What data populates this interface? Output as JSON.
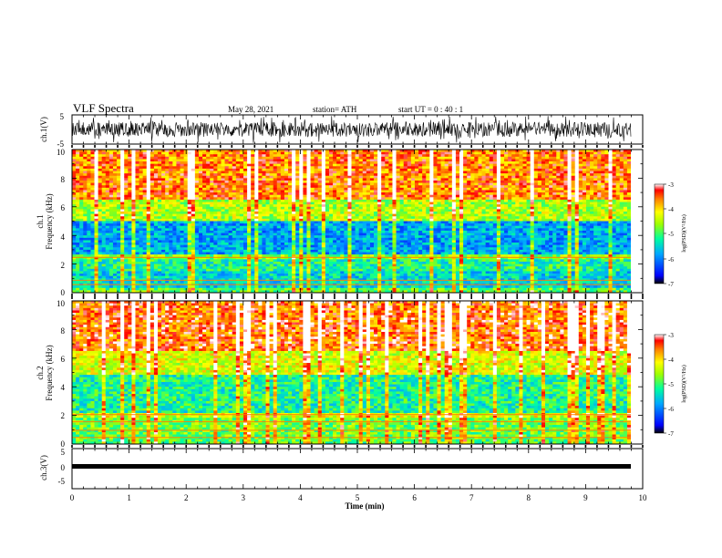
{
  "header": {
    "title": "VLF Spectra",
    "date": "May 28, 2021",
    "station": "station= ATH",
    "start": "start  UT  =   0 : 40 : 1"
  },
  "chart_data": [
    {
      "type": "line",
      "ylabel": "ch.1(V)",
      "ylim": [
        -5,
        5
      ],
      "yticks": [
        "5",
        "-5"
      ],
      "xlim": [
        0,
        10
      ],
      "description_of_signal": "noisy voltage waveform spanning the full range",
      "color": "#000000"
    },
    {
      "type": "heatmap",
      "ylabel_line1": "ch.1",
      "ylabel_line2": "Frequency (kHz)",
      "ylim": [
        0,
        10
      ],
      "yticks": [
        "0",
        "2",
        "4",
        "6",
        "8",
        "10"
      ],
      "xlim": [
        0,
        10
      ],
      "colorbar": {
        "label": "log(PSD)(V²/Hz)",
        "range": [
          -7,
          -3
        ],
        "ticks": [
          "-3",
          "-4",
          "-5",
          "-6",
          "-7"
        ]
      }
    },
    {
      "type": "heatmap",
      "ylabel_line1": "ch.2",
      "ylabel_line2": "Frequency (kHz)",
      "ylim": [
        0,
        10
      ],
      "yticks": [
        "0",
        "2",
        "4",
        "6",
        "8",
        "10"
      ],
      "xlim": [
        0,
        10
      ],
      "colorbar": {
        "label": "log(PSD)(V²/Hz)",
        "range": [
          -7,
          -3
        ],
        "ticks": [
          "-3",
          "-4",
          "-5",
          "-6",
          "-7"
        ]
      }
    },
    {
      "type": "line",
      "ylabel": "ch.3(V)",
      "ylim": [
        -5,
        5
      ],
      "yticks": [
        "5",
        "0",
        "-5"
      ],
      "xlim": [
        0,
        10
      ],
      "color": "#000000"
    }
  ],
  "xaxis": {
    "label": "Time  (min)",
    "ticks": [
      "0",
      "1",
      "2",
      "3",
      "4",
      "5",
      "6",
      "7",
      "8",
      "9",
      "10"
    ]
  },
  "colormap": [
    "#000000",
    "#0000ff",
    "#00aaff",
    "#00ffaa",
    "#aaff00",
    "#ffff00",
    "#ffaa00",
    "#ff0000",
    "#ffffff"
  ]
}
